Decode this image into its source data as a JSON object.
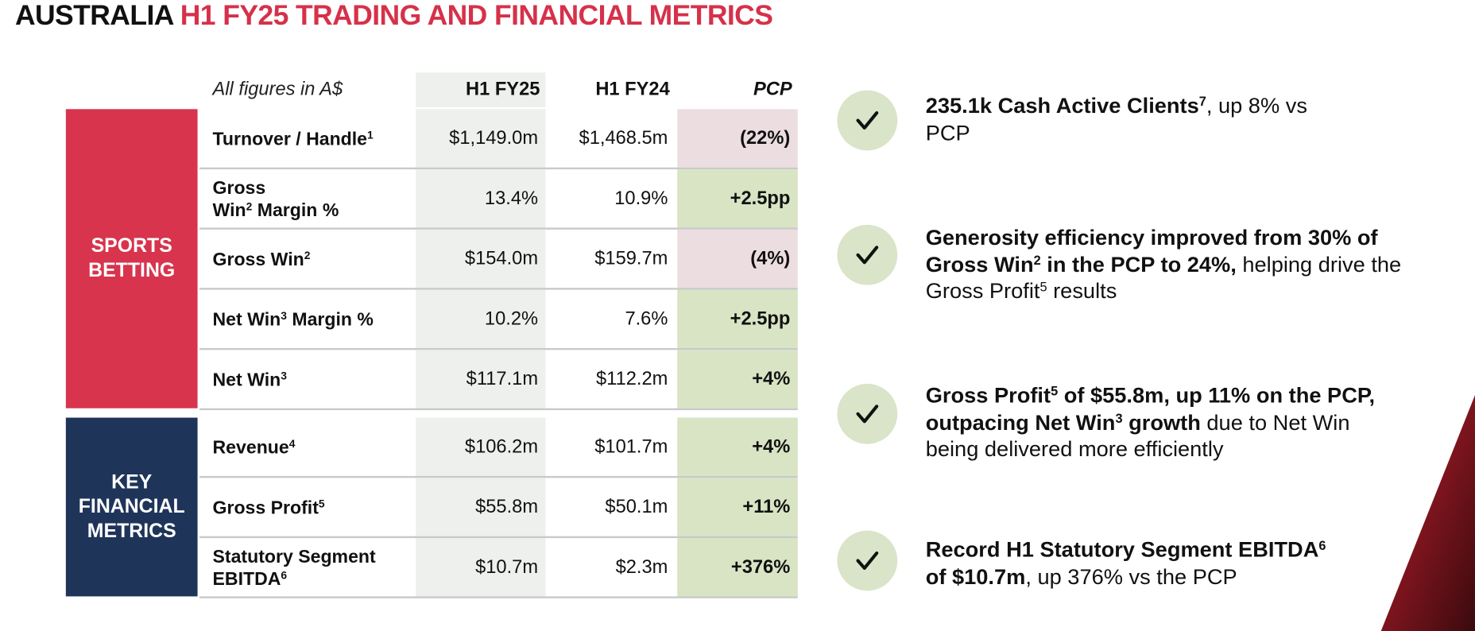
{
  "title": {
    "lead": "AUSTRALIA",
    "highlight": "H1 FY25 TRADING AND FINANCIAL METRICS"
  },
  "table": {
    "caption": "All figures in A$",
    "columns": [
      "H1 FY25",
      "H1 FY24",
      "PCP"
    ],
    "groups": [
      {
        "name": "SPORTS BETTING",
        "color": "#d8344d",
        "rows": [
          {
            "label": [
              {
                "text": "Turnover / Handle"
              },
              {
                "sup": "1"
              }
            ],
            "values": [
              "$1,149.0m",
              "$1,468.5m",
              "(22%)"
            ],
            "pcp_fill": "#ecdde1"
          },
          {
            "label": [
              {
                "text": "Gross\nWin"
              },
              {
                "sup": "2"
              },
              {
                "text": " Margin %"
              }
            ],
            "values": [
              "13.4%",
              "10.9%",
              "+2.5pp"
            ],
            "pcp_fill": "#d8e4c4"
          },
          {
            "label": [
              {
                "text": "Gross Win"
              },
              {
                "sup": "2"
              }
            ],
            "values": [
              "$154.0m",
              "$159.7m",
              "(4%)"
            ],
            "pcp_fill": "#ecdde1"
          },
          {
            "label": [
              {
                "text": "Net Win"
              },
              {
                "sup": "3"
              },
              {
                "text": " Margin %"
              }
            ],
            "values": [
              "10.2%",
              "7.6%",
              "+2.5pp"
            ],
            "pcp_fill": "#d8e4c4"
          },
          {
            "label": [
              {
                "text": "Net Win"
              },
              {
                "sup": "3"
              }
            ],
            "values": [
              "$117.1m",
              "$112.2m",
              "+4%"
            ],
            "pcp_fill": "#d8e4c4"
          }
        ]
      },
      {
        "name": "KEY FINANCIAL METRICS",
        "color": "#1f3459",
        "rows": [
          {
            "label": [
              {
                "text": "Revenue"
              },
              {
                "sup": "4"
              }
            ],
            "values": [
              "$106.2m",
              "$101.7m",
              "+4%"
            ],
            "pcp_fill": "#d8e4c4"
          },
          {
            "label": [
              {
                "text": "Gross Profit"
              },
              {
                "sup": "5"
              }
            ],
            "values": [
              "$55.8m",
              "$50.1m",
              "+11%"
            ],
            "pcp_fill": "#d8e4c4"
          },
          {
            "label": [
              {
                "text": "Statutory Segment\nEBITDA"
              },
              {
                "sup": "6"
              }
            ],
            "values": [
              "$10.7m",
              "$2.3m",
              "+376%"
            ],
            "pcp_fill": "#d8e4c4"
          }
        ]
      }
    ]
  },
  "highlights": [
    {
      "parts": [
        {
          "text": "235.1k Cash Active Clients",
          "bold": true
        },
        {
          "sup": "7",
          "bold": true
        },
        {
          "text": ", up 8% vs\nPCP"
        }
      ]
    },
    {
      "parts": [
        {
          "text": "Generosity efficiency improved from 30% of\nGross Win",
          "bold": true
        },
        {
          "sup": "2",
          "bold": true
        },
        {
          "text": " in the PCP to 24%,",
          "bold": true
        },
        {
          "text": " helping drive the\nGross Profit"
        },
        {
          "sup": "5"
        },
        {
          "text": " results"
        }
      ]
    },
    {
      "parts": [
        {
          "text": "Gross Profit",
          "bold": true
        },
        {
          "sup": "5",
          "bold": true
        },
        {
          "text": " of $55.8m, up 11% on the PCP,\noutpacing Net Win",
          "bold": true
        },
        {
          "sup": "3",
          "bold": true
        },
        {
          "text": " growth",
          "bold": true
        },
        {
          "text": " due to Net Win\nbeing delivered more efficiently"
        }
      ]
    },
    {
      "parts": [
        {
          "text": "Record H1 Statutory Segment EBITDA",
          "bold": true
        },
        {
          "sup": "6",
          "bold": true
        },
        {
          "text": "\nof $10.7m",
          "bold": true
        },
        {
          "text": ", up 376% vs the PCP"
        }
      ]
    }
  ]
}
